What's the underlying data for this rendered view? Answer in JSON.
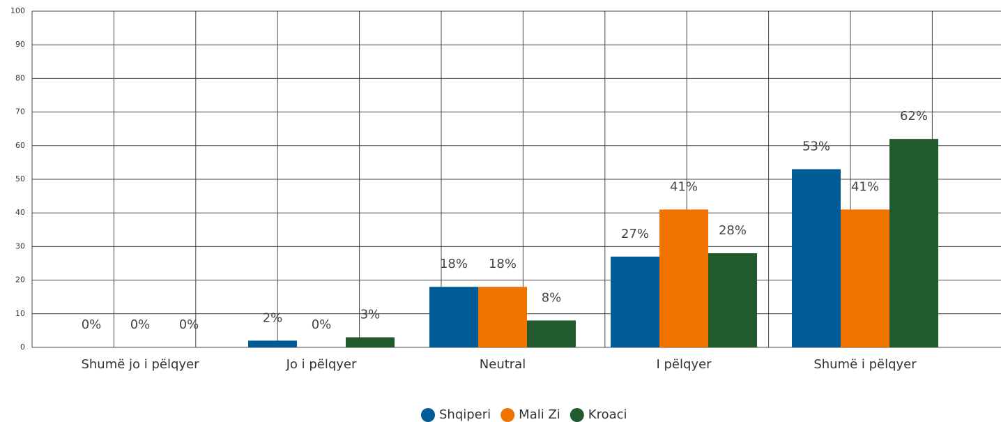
{
  "chart_data": {
    "type": "bar",
    "categories": [
      "Shumë jo i pëlqyer",
      "Jo i pëlqyer",
      "Neutral",
      "I pëlqyer",
      "Shumë i pëlqyer"
    ],
    "series": [
      {
        "name": "Shqiperi",
        "color": "#005b96",
        "values": [
          0,
          2,
          18,
          27,
          53
        ],
        "value_labels": [
          "0%",
          "2%",
          "18%",
          "27%",
          "53%"
        ]
      },
      {
        "name": "Mali Zi",
        "color": "#f07300",
        "values": [
          0,
          0,
          18,
          41,
          41
        ],
        "value_labels": [
          "0%",
          "0%",
          "18%",
          "41%",
          "41%"
        ]
      },
      {
        "name": "Kroaci",
        "color": "#215a2c",
        "values": [
          0,
          3,
          8,
          28,
          62
        ],
        "value_labels": [
          "0%",
          "3%",
          "8%",
          "28%",
          "62%"
        ]
      }
    ],
    "ylim": [
      0,
      100
    ],
    "yticks": [
      0,
      10,
      20,
      30,
      40,
      50,
      60,
      70,
      80,
      90,
      100
    ],
    "grid": true,
    "legend": "bottom"
  }
}
